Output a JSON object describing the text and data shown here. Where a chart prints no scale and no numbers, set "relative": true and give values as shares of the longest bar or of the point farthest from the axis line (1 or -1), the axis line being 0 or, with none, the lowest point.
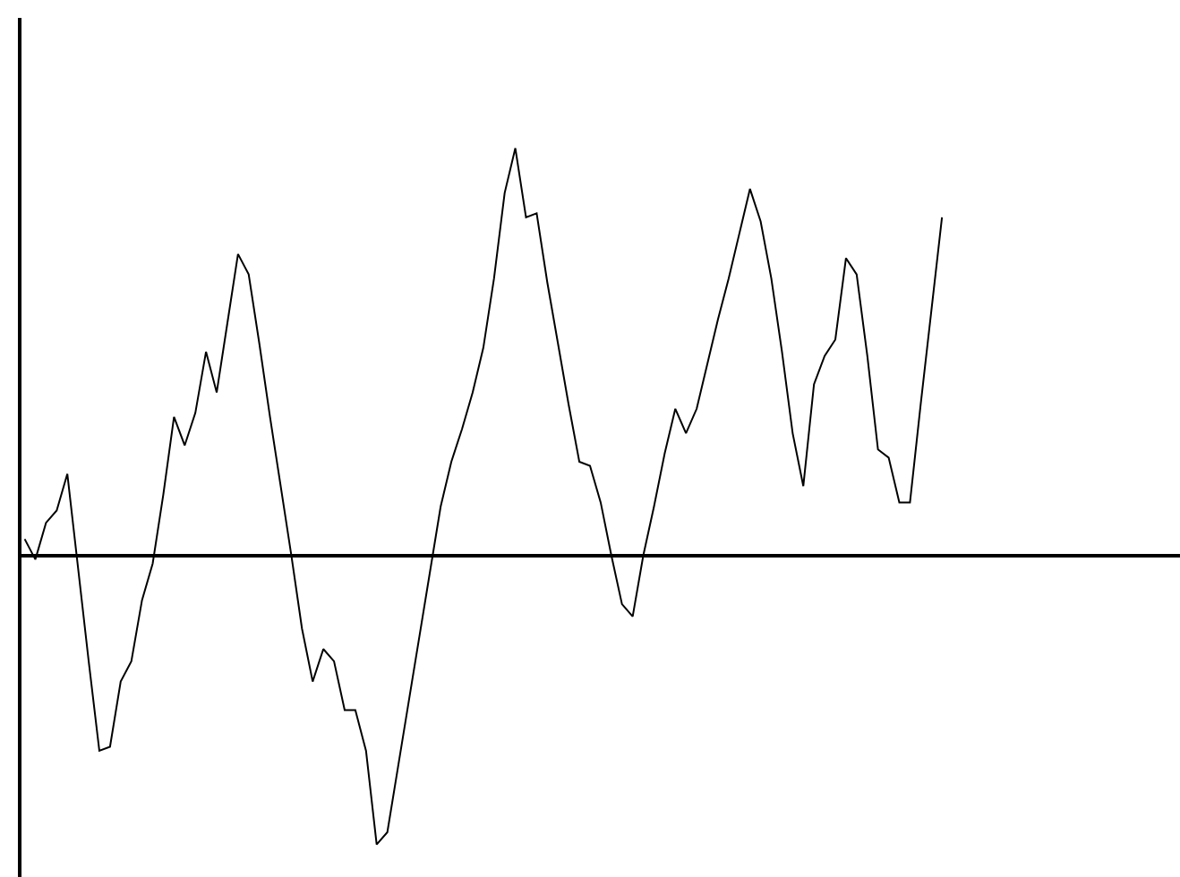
{
  "chart_data": {
    "type": "line",
    "relative": true,
    "color": "#000000",
    "categories": [
      null,
      null,
      null,
      null,
      null,
      null,
      null,
      null,
      null,
      null,
      null,
      null,
      null,
      null,
      null,
      null,
      null,
      null,
      null,
      null,
      null,
      null,
      null,
      null,
      null,
      null,
      null,
      null,
      null,
      null,
      null,
      null,
      null,
      null,
      null,
      null,
      null,
      null,
      null,
      null,
      null,
      null,
      null,
      null,
      null,
      null,
      null,
      null,
      null,
      null,
      null,
      null,
      null,
      null,
      null,
      null,
      null,
      null,
      null,
      null,
      null,
      null,
      null,
      null,
      null,
      null,
      null,
      null,
      null,
      null,
      null,
      null,
      null,
      null,
      null,
      null,
      null,
      null,
      null,
      null,
      null,
      null,
      null,
      null,
      null,
      null,
      null
    ],
    "values": [
      0.04,
      -0.01,
      0.08,
      0.11,
      0.2,
      -0.03,
      -0.26,
      -0.48,
      -0.47,
      -0.31,
      -0.26,
      -0.11,
      -0.02,
      0.15,
      0.34,
      0.27,
      0.35,
      0.5,
      0.4,
      0.57,
      0.74,
      0.69,
      0.52,
      0.34,
      0.17,
      0.0,
      -0.18,
      -0.31,
      -0.23,
      -0.26,
      -0.38,
      -0.38,
      -0.48,
      -0.71,
      -0.68,
      -0.52,
      -0.36,
      -0.2,
      -0.04,
      0.12,
      0.23,
      0.31,
      0.4,
      0.51,
      0.68,
      0.89,
      1.0,
      0.83,
      0.84,
      0.67,
      0.52,
      0.37,
      0.23,
      0.22,
      0.13,
      0.0,
      -0.12,
      -0.15,
      0.0,
      0.12,
      0.25,
      0.36,
      0.3,
      0.36,
      0.47,
      0.58,
      0.68,
      0.79,
      0.9,
      0.82,
      0.68,
      0.5,
      0.3,
      0.17,
      0.42,
      0.49,
      0.53,
      0.73,
      0.69,
      0.49,
      0.26,
      0.24,
      0.13,
      0.13,
      0.37,
      0.6,
      0.83
    ]
  }
}
